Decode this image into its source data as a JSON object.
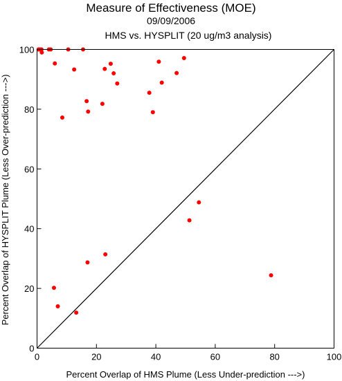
{
  "chart_data": {
    "type": "scatter",
    "title": "Measure of Effectiveness (MOE)",
    "subtitles": [
      "09/09/2006",
      "HMS vs. HYSPLIT  (20 ug/m3 analysis)"
    ],
    "xlabel": "Percent Overlap of HMS Plume (Less Under-prediction --->)",
    "ylabel": "Percent Overlap of HYSPLIT Plume (Less Over-prediction --->)",
    "xlim": [
      0,
      100
    ],
    "ylim": [
      0,
      100
    ],
    "xticks": [
      0,
      20,
      40,
      60,
      80,
      100
    ],
    "yticks": [
      0,
      20,
      40,
      60,
      80,
      100
    ],
    "grid": false,
    "reference_line": "y = x",
    "point_color": "#ff0000",
    "points": [
      {
        "x": 0.5,
        "y": 100
      },
      {
        "x": 1.0,
        "y": 100
      },
      {
        "x": 1.5,
        "y": 100
      },
      {
        "x": 1.6,
        "y": 99
      },
      {
        "x": 4.0,
        "y": 100
      },
      {
        "x": 4.6,
        "y": 100
      },
      {
        "x": 10.5,
        "y": 100
      },
      {
        "x": 15.5,
        "y": 100
      },
      {
        "x": 6.0,
        "y": 95.3
      },
      {
        "x": 12.5,
        "y": 93.3
      },
      {
        "x": 22.8,
        "y": 93.5
      },
      {
        "x": 24.8,
        "y": 95.2
      },
      {
        "x": 25.8,
        "y": 92.0
      },
      {
        "x": 27.0,
        "y": 88.6
      },
      {
        "x": 16.7,
        "y": 82.7
      },
      {
        "x": 17.2,
        "y": 79.2
      },
      {
        "x": 22.0,
        "y": 81.8
      },
      {
        "x": 8.5,
        "y": 77.2
      },
      {
        "x": 37.8,
        "y": 85.5
      },
      {
        "x": 39.0,
        "y": 79.0
      },
      {
        "x": 41.0,
        "y": 95.9
      },
      {
        "x": 42.0,
        "y": 88.9
      },
      {
        "x": 47.0,
        "y": 92.1
      },
      {
        "x": 49.5,
        "y": 97.1
      },
      {
        "x": 54.5,
        "y": 48.8
      },
      {
        "x": 51.3,
        "y": 42.8
      },
      {
        "x": 78.8,
        "y": 24.4
      },
      {
        "x": 23.0,
        "y": 31.4
      },
      {
        "x": 17.0,
        "y": 28.7
      },
      {
        "x": 5.7,
        "y": 20.2
      },
      {
        "x": 7.0,
        "y": 14.0
      },
      {
        "x": 13.2,
        "y": 11.9
      }
    ]
  }
}
